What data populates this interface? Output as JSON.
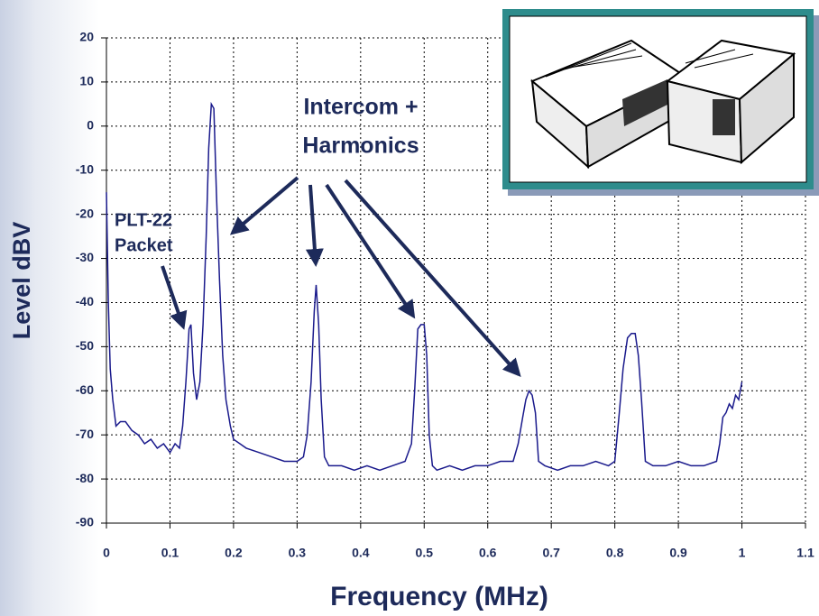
{
  "chart_data": {
    "type": "line",
    "x_label": "Frequency (MHz)",
    "y_label": "Level dBV",
    "xlim": [
      0,
      1.1
    ],
    "xticks": [
      0,
      0.1,
      0.2,
      0.3,
      0.4,
      0.5,
      0.6,
      0.7,
      0.8,
      0.9,
      1,
      1.1
    ],
    "ylim": [
      -90,
      20
    ],
    "yticks": [
      -90,
      -80,
      -70,
      -60,
      -50,
      -40,
      -30,
      -20,
      -10,
      0,
      10,
      20
    ],
    "grid": true,
    "series": [
      {
        "color": "#1a1a8c",
        "x": [
          0,
          0.003,
          0.006,
          0.01,
          0.015,
          0.022,
          0.03,
          0.04,
          0.05,
          0.06,
          0.07,
          0.08,
          0.09,
          0.1,
          0.108,
          0.115,
          0.12,
          0.125,
          0.13,
          0.133,
          0.137,
          0.142,
          0.147,
          0.152,
          0.157,
          0.161,
          0.165,
          0.169,
          0.173,
          0.178,
          0.183,
          0.188,
          0.195,
          0.2,
          0.21,
          0.22,
          0.24,
          0.26,
          0.28,
          0.3,
          0.31,
          0.316,
          0.322,
          0.327,
          0.33,
          0.334,
          0.338,
          0.343,
          0.35,
          0.37,
          0.39,
          0.41,
          0.43,
          0.45,
          0.47,
          0.48,
          0.485,
          0.49,
          0.495,
          0.5,
          0.504,
          0.508,
          0.513,
          0.52,
          0.54,
          0.56,
          0.58,
          0.6,
          0.62,
          0.64,
          0.648,
          0.655,
          0.66,
          0.665,
          0.67,
          0.675,
          0.68,
          0.69,
          0.71,
          0.73,
          0.75,
          0.77,
          0.79,
          0.8,
          0.807,
          0.813,
          0.82,
          0.826,
          0.832,
          0.837,
          0.842,
          0.848,
          0.86,
          0.88,
          0.9,
          0.92,
          0.94,
          0.96,
          0.965,
          0.97,
          0.975,
          0.98,
          0.985,
          0.99,
          0.995,
          1
        ],
        "values": [
          -15,
          -40,
          -55,
          -62,
          -68,
          -67,
          -67,
          -69,
          -70,
          -72,
          -71,
          -73,
          -72,
          -74,
          -72,
          -73,
          -68,
          -58,
          -46,
          -45,
          -56,
          -62,
          -58,
          -45,
          -25,
          -5,
          5,
          4,
          -15,
          -35,
          -52,
          -62,
          -68,
          -71,
          -72,
          -73,
          -74,
          -75,
          -76,
          -76,
          -75,
          -70,
          -58,
          -42,
          -36,
          -45,
          -62,
          -75,
          -77,
          -77,
          -78,
          -77,
          -78,
          -77,
          -76,
          -72,
          -60,
          -46,
          -45,
          -45,
          -52,
          -70,
          -77,
          -78,
          -77,
          -78,
          -77,
          -77,
          -76,
          -76,
          -72,
          -66,
          -62,
          -60,
          -61,
          -65,
          -76,
          -77,
          -78,
          -77,
          -77,
          -76,
          -77,
          -76,
          -65,
          -55,
          -48,
          -47,
          -47,
          -52,
          -62,
          -76,
          -77,
          -77,
          -76,
          -77,
          -77,
          -76,
          -72,
          -66,
          -65,
          -63,
          -64,
          -61,
          -62,
          -58
        ]
      }
    ]
  },
  "annotations": {
    "intercom": [
      "Intercom +",
      "Harmonics"
    ],
    "plt": [
      "PLT-22",
      "Packet"
    ]
  }
}
